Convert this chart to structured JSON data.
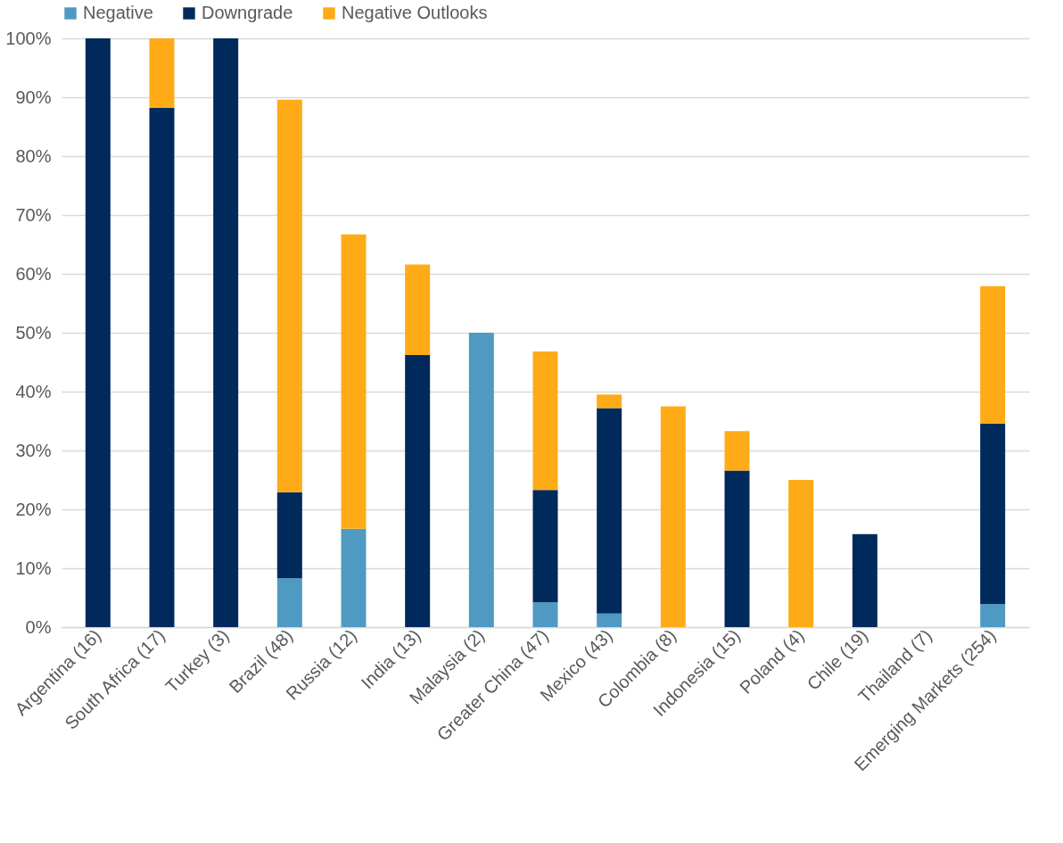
{
  "chart_data": {
    "type": "bar",
    "stacked": true,
    "categories": [
      "Argentina (16)",
      "South Africa (17)",
      "Turkey (3)",
      "Brazil (48)",
      "Russia (12)",
      "India (13)",
      "Malaysia (2)",
      "Greater China (47)",
      "Mexico (43)",
      "Colombia (8)",
      "Indonesia (15)",
      "Poland (4)",
      "Chile (19)",
      "Thailand (7)",
      "Emerging Markets (254)"
    ],
    "series": [
      {
        "name": "Negative",
        "color": "#4f9ac2",
        "values": [
          0,
          0,
          0,
          8.3,
          16.7,
          0,
          50,
          4.2,
          2.3,
          0,
          0,
          0,
          0,
          0,
          3.9
        ]
      },
      {
        "name": "Downgrade",
        "color": "#002a5c",
        "values": [
          100,
          88.2,
          100,
          14.6,
          0,
          46.2,
          0,
          19.1,
          34.9,
          0,
          26.6,
          0,
          15.8,
          0,
          30.7
        ]
      },
      {
        "name": "Negative Outlooks",
        "color": "#ffab18",
        "values": [
          0,
          11.8,
          0,
          66.7,
          50,
          15.4,
          0,
          23.5,
          2.3,
          37.5,
          6.7,
          25,
          0,
          0,
          23.3
        ]
      }
    ],
    "ylim": [
      0,
      100
    ],
    "yticks": [
      {
        "value": 0,
        "label": "0%"
      },
      {
        "value": 10,
        "label": "10%"
      },
      {
        "value": 20,
        "label": "20%"
      },
      {
        "value": 30,
        "label": "30%"
      },
      {
        "value": 40,
        "label": "40%"
      },
      {
        "value": 50,
        "label": "50%"
      },
      {
        "value": 60,
        "label": "60%"
      },
      {
        "value": 70,
        "label": "70%"
      },
      {
        "value": 80,
        "label": "80%"
      },
      {
        "value": 90,
        "label": "90%"
      },
      {
        "value": 100,
        "label": "100%"
      }
    ],
    "grid": "y",
    "legend": "top"
  }
}
